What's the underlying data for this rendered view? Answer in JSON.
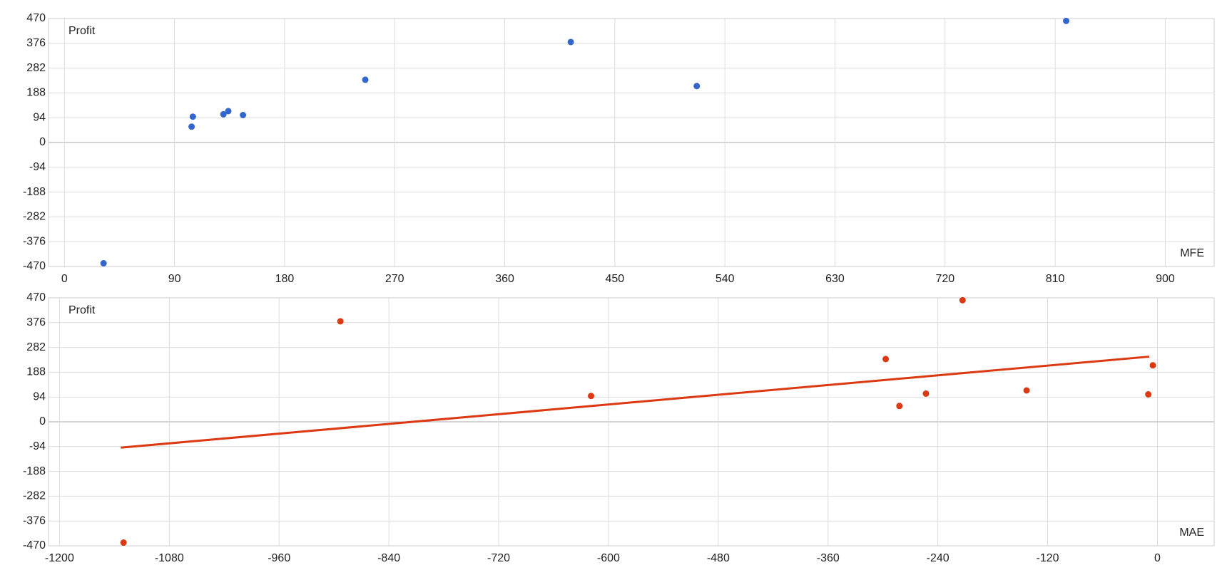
{
  "chart_data": [
    {
      "type": "scatter",
      "ylabel": "Profit",
      "xlabel": "MFE",
      "color": "#3366cc",
      "x": [
        32,
        104,
        105,
        130,
        134,
        146,
        246,
        414,
        517,
        819
      ],
      "values": [
        -458,
        60,
        98,
        107,
        119,
        104,
        238,
        381,
        214,
        461
      ],
      "xlim": [
        -13,
        940
      ],
      "ylim": [
        -470,
        470
      ],
      "xticks": [
        0,
        90,
        180,
        270,
        360,
        450,
        540,
        630,
        720,
        810,
        900
      ],
      "yticks": [
        -470,
        -376,
        -282,
        -188,
        -94,
        0,
        94,
        188,
        282,
        376,
        470
      ],
      "grid": true
    },
    {
      "type": "scatter",
      "ylabel": "Profit",
      "xlabel": "MAE",
      "color": "#dc3912",
      "x": [
        -1130,
        -893,
        -619,
        -297,
        -282,
        -253,
        -213,
        -143,
        -10,
        -5
      ],
      "values": [
        -458,
        381,
        98,
        238,
        60,
        107,
        461,
        119,
        104,
        214
      ],
      "trendline": {
        "x": [
          -1133,
          -9
        ],
        "values": [
          -98,
          247
        ]
      },
      "xlim": [
        -1212,
        62
      ],
      "ylim": [
        -470,
        470
      ],
      "xticks": [
        -1200,
        -1080,
        -960,
        -840,
        -720,
        -600,
        -480,
        -360,
        -240,
        -120,
        0
      ],
      "yticks": [
        -470,
        -376,
        -282,
        -188,
        -94,
        0,
        94,
        188,
        282,
        376,
        470
      ],
      "grid": true
    }
  ]
}
